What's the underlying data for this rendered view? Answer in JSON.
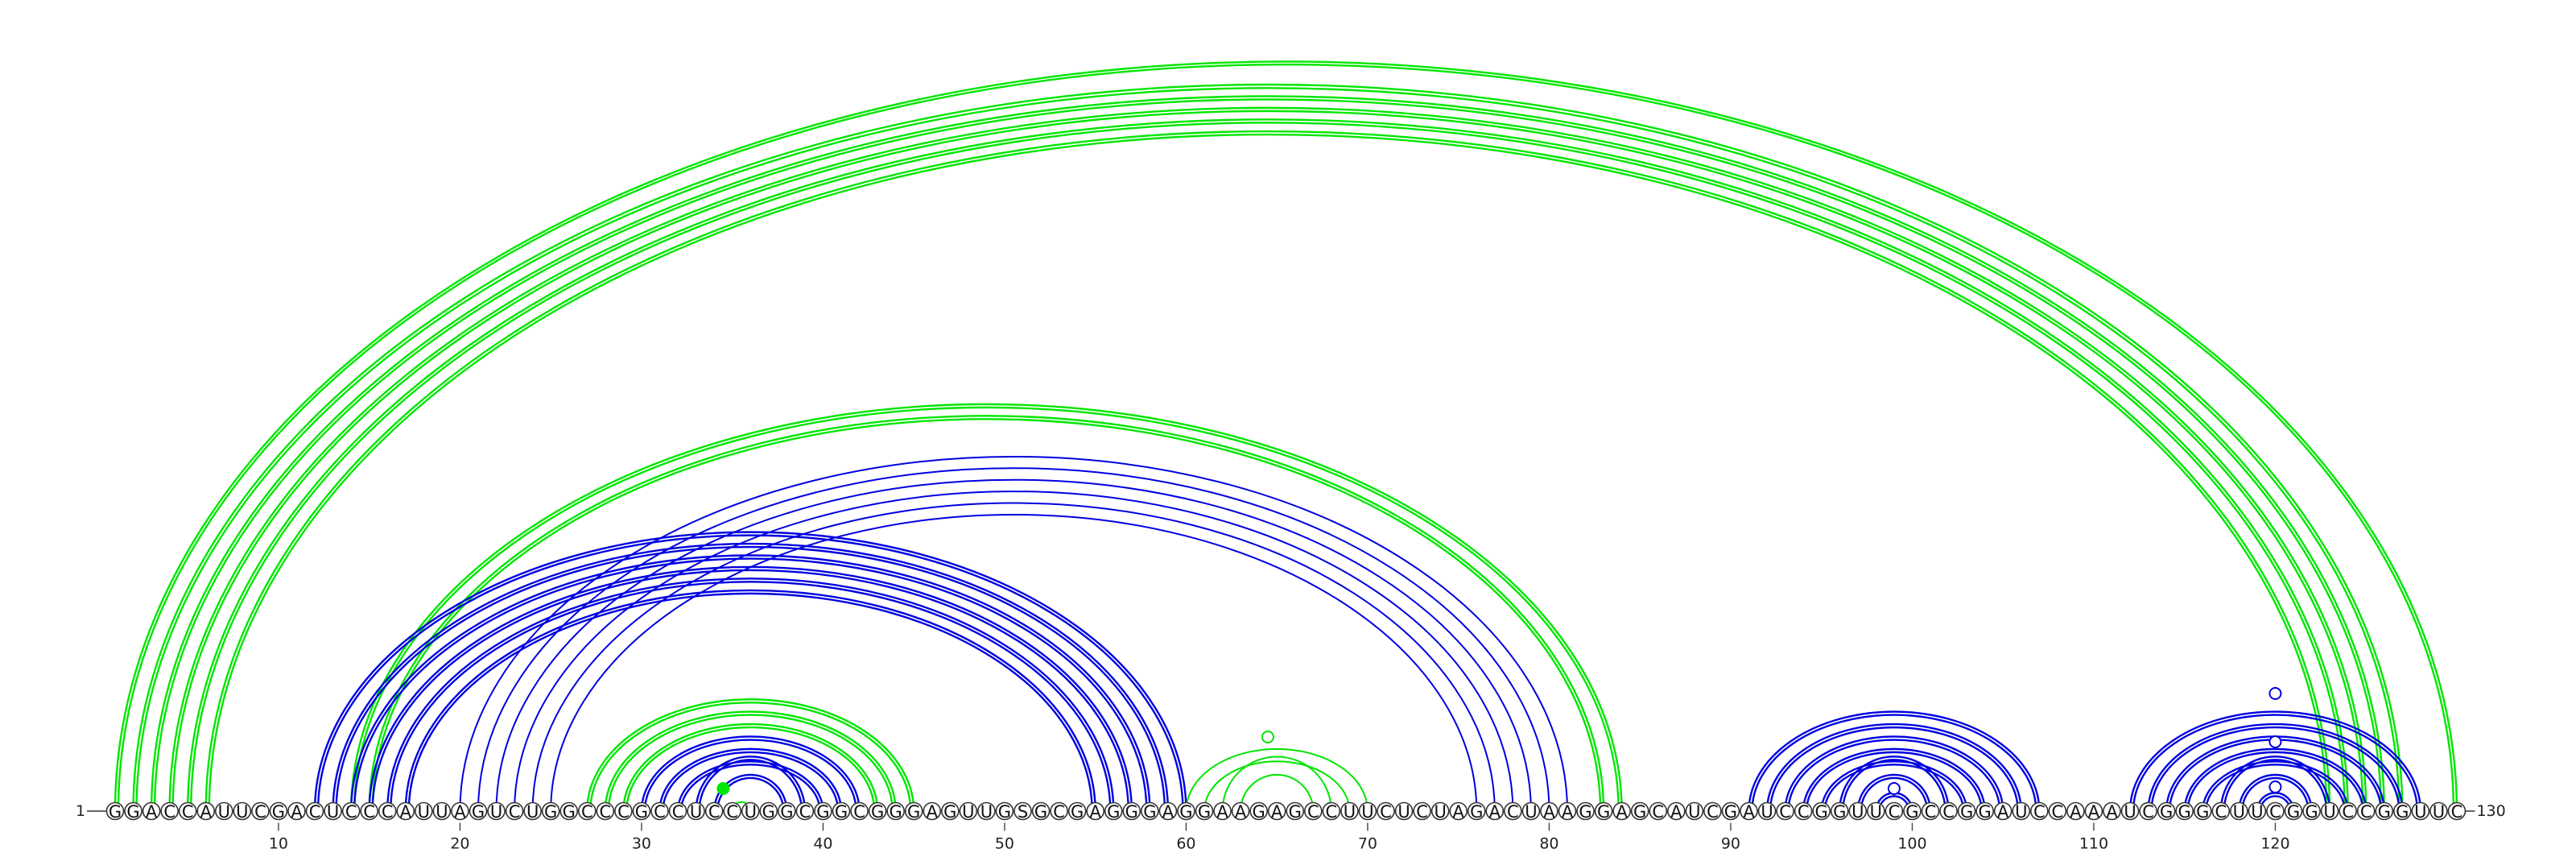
{
  "sequence": "GGACCAUUCGACUCCCAUUAGUCUGGCCCGCCUCCUGGCGGCGGGAGUUGSGCGAGGGAGGAAGAGCCUUCUCUAGACUAAGGAGCAUCGAUCCGGUUCGCCGGAUCCAAAUCGGGCUUCGGUCCGGUUC",
  "start_label": "1",
  "end_label": "130",
  "tick_labels": [
    "10",
    "20",
    "30",
    "40",
    "50",
    "60",
    "70",
    "80",
    "90",
    "100",
    "110",
    "120"
  ],
  "colors": {
    "green": "#00e600",
    "blue": "#0000e0",
    "backbone": "#333333"
  },
  "arc_groups": [
    {
      "color": "green",
      "outer_pairs": [
        [
          1,
          130
        ],
        [
          2,
          127
        ],
        [
          3,
          126
        ],
        [
          4,
          125
        ],
        [
          5,
          124
        ],
        [
          6,
          123
        ]
      ],
      "lines": 2
    },
    {
      "color": "green",
      "outer_pairs": [
        [
          14,
          84
        ],
        [
          15,
          83
        ]
      ],
      "lines": 2
    },
    {
      "color": "blue",
      "outer_pairs": [
        [
          12,
          60
        ],
        [
          13,
          59
        ],
        [
          14,
          58
        ],
        [
          15,
          57
        ],
        [
          16,
          56
        ],
        [
          17,
          55
        ]
      ],
      "lines": 2
    },
    {
      "color": "blue",
      "outer_pairs": [
        [
          20,
          81
        ],
        [
          21,
          80
        ],
        [
          22,
          79
        ],
        [
          23,
          78
        ],
        [
          24,
          77
        ],
        [
          25,
          76
        ]
      ],
      "lines": 1
    },
    {
      "color": "green",
      "outer_pairs": [
        [
          27,
          45
        ],
        [
          28,
          44
        ],
        [
          29,
          43
        ]
      ],
      "lines": 2
    },
    {
      "color": "blue",
      "outer_pairs": [
        [
          30,
          42
        ],
        [
          31,
          41
        ],
        [
          32,
          40
        ],
        [
          33,
          39
        ],
        [
          34,
          38
        ]
      ],
      "lines": 2
    },
    {
      "color": "green",
      "outer_pairs": [
        [
          35,
          36
        ]
      ],
      "lines": 1
    },
    {
      "color": "green",
      "outer_pairs": [
        [
          60,
          70
        ],
        [
          61,
          69
        ],
        [
          62,
          68
        ],
        [
          63,
          67
        ]
      ],
      "lines": 1
    },
    {
      "color": "blue",
      "outer_pairs": [
        [
          91,
          107
        ],
        [
          92,
          106
        ],
        [
          93,
          105
        ],
        [
          94,
          104
        ],
        [
          95,
          103
        ],
        [
          96,
          102
        ],
        [
          97,
          101
        ],
        [
          98,
          100
        ]
      ],
      "lines": 2
    },
    {
      "color": "blue",
      "outer_pairs": [
        [
          112,
          128
        ],
        [
          113,
          127
        ],
        [
          114,
          126
        ],
        [
          115,
          125
        ],
        [
          116,
          124
        ],
        [
          117,
          123
        ],
        [
          118,
          122
        ],
        [
          119,
          121
        ]
      ],
      "lines": 2
    }
  ],
  "loop_markers": [
    {
      "position": 34.5,
      "color": "green",
      "filled": true
    },
    {
      "position": 64.5,
      "color": "green",
      "filled": false
    },
    {
      "position": 99,
      "color": "blue",
      "filled": false
    },
    {
      "position": 120,
      "color": "blue",
      "filled": false
    }
  ]
}
